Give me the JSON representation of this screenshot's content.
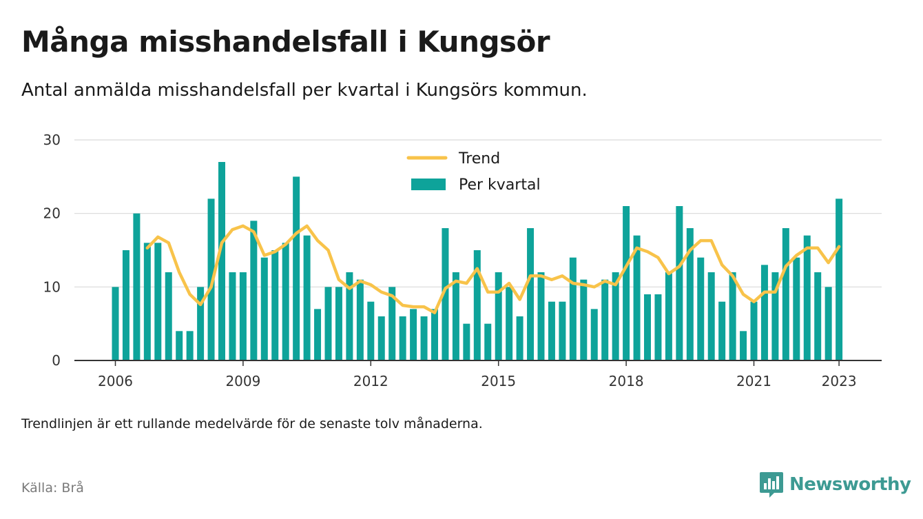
{
  "header": {
    "title": "Många misshandelsfall i Kungsör",
    "subtitle": "Antal anmälda misshandelsfall per kvartal i Kungsörs kommun."
  },
  "footer": {
    "note": "Trendlinjen är ett rullande medelvärde för de senaste tolv månaderna.",
    "source": "Källa: Brå",
    "brand": "Newsworthy"
  },
  "colors": {
    "bar": "#0ea39a",
    "trend": "#f8c34a",
    "grid": "#d9d9d9",
    "axis": "#333333",
    "brand": "#3d9a93"
  },
  "chart_data": {
    "type": "bar",
    "ylim": [
      0,
      30
    ],
    "y_ticks": [
      0,
      10,
      20,
      30
    ],
    "x_ticks": [
      "2006",
      "2009",
      "2012",
      "2015",
      "2018",
      "2021",
      "2023"
    ],
    "x_tick_quarters": [
      0,
      12,
      24,
      36,
      48,
      60,
      68
    ],
    "grid": true,
    "legend_position": "top-center",
    "series": [
      {
        "name": "Per kvartal",
        "type": "bar",
        "values": [
          10,
          15,
          20,
          16,
          16,
          12,
          4,
          4,
          10,
          22,
          27,
          12,
          12,
          19,
          14,
          15,
          16,
          25,
          17,
          7,
          10,
          10,
          12,
          11,
          8,
          6,
          10,
          6,
          7,
          6,
          7,
          18,
          12,
          5,
          15,
          5,
          12,
          10,
          6,
          18,
          12,
          8,
          8,
          14,
          11,
          7,
          11,
          12,
          21,
          17,
          9,
          9,
          12,
          21,
          18,
          14,
          12,
          8,
          12,
          4,
          8,
          13,
          12,
          18,
          14,
          17,
          12,
          10,
          22
        ]
      },
      {
        "name": "Trend",
        "type": "line",
        "start_index": 3,
        "values": [
          15.3,
          16.8,
          16,
          12,
          9,
          7.6,
          10,
          16,
          17.8,
          18.3,
          17.5,
          14.3,
          14.8,
          15.8,
          17.3,
          18.3,
          16.3,
          15,
          11,
          9.8,
          10.8,
          10.3,
          9.3,
          8.8,
          7.5,
          7.3,
          7.3,
          6.5,
          9.8,
          10.8,
          10.5,
          12.5,
          9.3,
          9.3,
          10.5,
          8.3,
          11.5,
          11.5,
          11,
          11.5,
          10.5,
          10.3,
          10,
          10.8,
          10.3,
          12.8,
          15.3,
          14.8,
          14,
          11.8,
          12.8,
          15,
          16.3,
          16.3,
          13,
          11.5,
          9,
          8,
          9.3,
          9.3,
          12.8,
          14.3,
          15.3,
          15.3,
          13.3,
          15.5
        ]
      }
    ]
  }
}
